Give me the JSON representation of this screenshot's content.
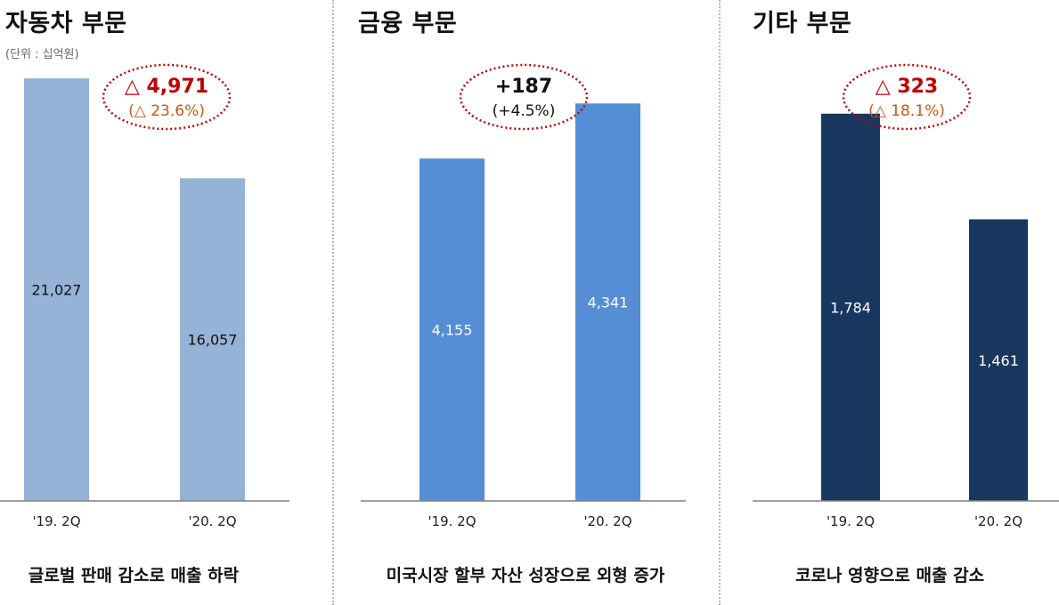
{
  "unit": "(단위 : 십억원)",
  "chart_data": [
    {
      "type": "bar",
      "title": "자동차 부문",
      "categories": [
        "'19. 2Q",
        "'20. 2Q"
      ],
      "values": [
        21027,
        16057
      ],
      "value_labels": [
        "21,027",
        "16,057"
      ],
      "change": "△ 4,971",
      "change_pct": "(△ 23.6%)",
      "caption": "글로벌 판매 감소로 매출 하락",
      "colors": {
        "bar": "#95b3d7",
        "label": "#111111",
        "change": "#c00000",
        "change_pct": "#c55a11",
        "ellipse": "#c00000"
      },
      "ylim": [
        0,
        23600
      ]
    },
    {
      "type": "bar",
      "title": "금융 부문",
      "categories": [
        "'19. 2Q",
        "'20. 2Q"
      ],
      "values": [
        4155,
        4341
      ],
      "value_labels": [
        "4,155",
        "4,341"
      ],
      "change": "+187",
      "change_pct": "(+4.5%)",
      "caption": "미국시장 할부 자산 성장으로 외형 증가",
      "colors": {
        "bar": "#558ed5",
        "label": "#ffffff",
        "change": "#111111",
        "change_pct": "#111111",
        "ellipse": "#c00000"
      },
      "ylim": [
        3000,
        4600
      ]
    },
    {
      "type": "bar",
      "title": "기타 부문",
      "categories": [
        "'19. 2Q",
        "'20. 2Q"
      ],
      "values": [
        1784,
        1461
      ],
      "value_labels": [
        "1,784",
        "1,461"
      ],
      "change": "△ 323",
      "change_pct": "(△ 18.1%)",
      "caption": "코로나 영향으로 매출 감소",
      "colors": {
        "bar": "#17375e",
        "label": "#ffffff",
        "change": "#c00000",
        "change_pct": "#c55a11",
        "ellipse": "#c00000"
      },
      "ylim": [
        600,
        2050
      ]
    }
  ]
}
